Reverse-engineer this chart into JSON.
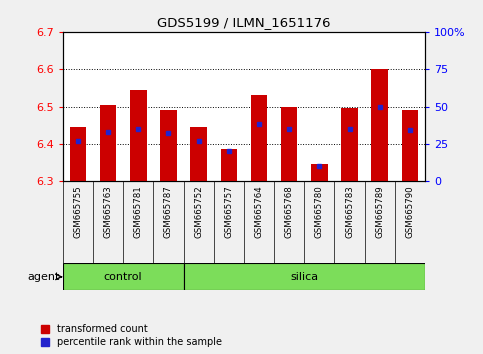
{
  "title": "GDS5199 / ILMN_1651176",
  "samples": [
    "GSM665755",
    "GSM665763",
    "GSM665781",
    "GSM665787",
    "GSM665752",
    "GSM665757",
    "GSM665764",
    "GSM665768",
    "GSM665780",
    "GSM665783",
    "GSM665789",
    "GSM665790"
  ],
  "groups": [
    "control",
    "control",
    "control",
    "control",
    "silica",
    "silica",
    "silica",
    "silica",
    "silica",
    "silica",
    "silica",
    "silica"
  ],
  "transformed_count": [
    6.445,
    6.505,
    6.545,
    6.49,
    6.445,
    6.385,
    6.53,
    6.5,
    6.345,
    6.495,
    6.6,
    6.49
  ],
  "percentile_rank": [
    27,
    33,
    35,
    32,
    27,
    20,
    38,
    35,
    10,
    35,
    50,
    34
  ],
  "y_min": 6.3,
  "y_max": 6.7,
  "y_ticks": [
    6.3,
    6.4,
    6.5,
    6.6,
    6.7
  ],
  "right_y_ticks": [
    0,
    25,
    50,
    75,
    100
  ],
  "right_y_labels": [
    "0",
    "25",
    "50",
    "75",
    "100%"
  ],
  "bar_color": "#cc0000",
  "blue_color": "#2222cc",
  "bar_bottom": 6.3,
  "group_color": "#7cdd5a",
  "sample_bg": "#d0d0d0",
  "legend_transformed": "transformed count",
  "legend_percentile": "percentile rank within the sample",
  "background_color": "#f0f0f0",
  "plot_bg": "#ffffff",
  "bar_width": 0.55
}
